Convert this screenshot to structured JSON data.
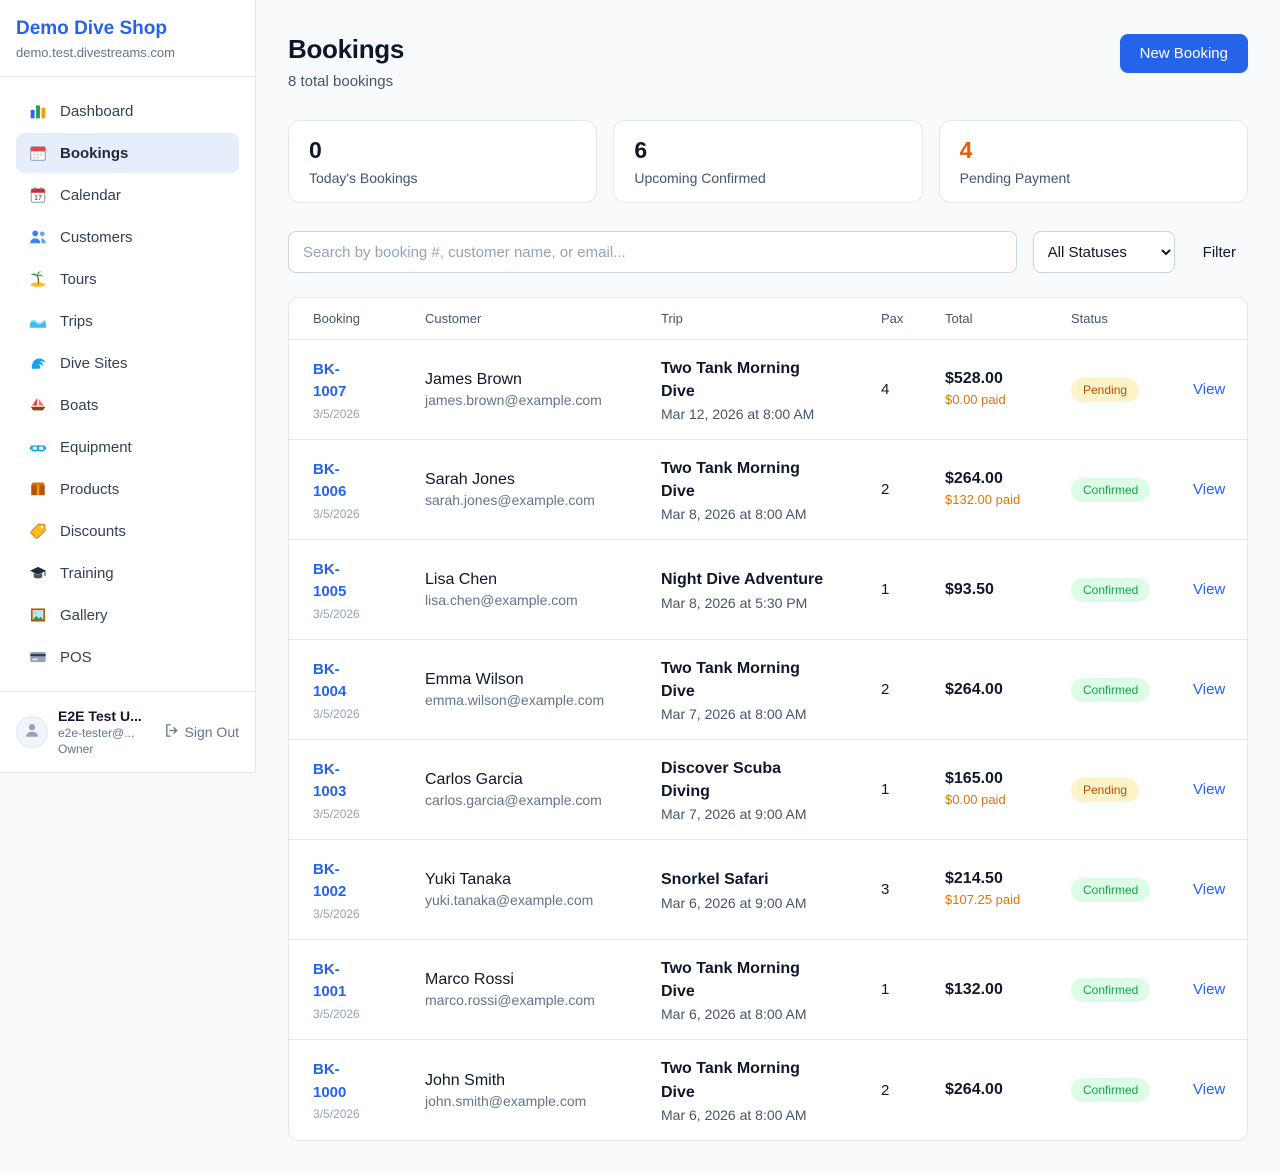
{
  "colors": {
    "accent": "#2563eb",
    "pending_stat": "#ea580c",
    "paid_text": "#d97706",
    "status": {
      "Pending": {
        "bg": "#fef3c7",
        "text": "#b45309"
      },
      "Confirmed": {
        "bg": "#dcfce7",
        "text": "#16a34a"
      }
    }
  },
  "sidebar": {
    "brand": "Demo Dive Shop",
    "subdomain": "demo.test.divestreams.com",
    "items": [
      {
        "icon": "bar-chart-icon",
        "label": "Dashboard",
        "active": false
      },
      {
        "icon": "bookings-calendar-icon",
        "label": "Bookings",
        "active": true
      },
      {
        "icon": "calendar-icon",
        "label": "Calendar",
        "active": false
      },
      {
        "icon": "users-icon",
        "label": "Customers",
        "active": false
      },
      {
        "icon": "island-icon",
        "label": "Tours",
        "active": false
      },
      {
        "icon": "wave-icon",
        "label": "Trips",
        "active": false
      },
      {
        "icon": "dive-site-icon",
        "label": "Dive Sites",
        "active": false
      },
      {
        "icon": "boat-icon",
        "label": "Boats",
        "active": false
      },
      {
        "icon": "dive-mask-icon",
        "label": "Equipment",
        "active": false
      },
      {
        "icon": "box-icon",
        "label": "Products",
        "active": false
      },
      {
        "icon": "tag-icon",
        "label": "Discounts",
        "active": false
      },
      {
        "icon": "grad-cap-icon",
        "label": "Training",
        "active": false
      },
      {
        "icon": "picture-icon",
        "label": "Gallery",
        "active": false
      },
      {
        "icon": "credit-card-icon",
        "label": "POS",
        "active": false
      }
    ],
    "user": {
      "name": "E2E Test U...",
      "email": "e2e-tester@...",
      "role": "Owner",
      "sign_out_label": "Sign Out"
    }
  },
  "header": {
    "title": "Bookings",
    "subtitle": "8 total bookings",
    "new_booking_label": "New Booking"
  },
  "stats": [
    {
      "value": "0",
      "label": "Today's Bookings",
      "value_color": "#0f172a"
    },
    {
      "value": "6",
      "label": "Upcoming Confirmed",
      "value_color": "#0f172a"
    },
    {
      "value": "4",
      "label": "Pending Payment",
      "value_color": "#ea580c"
    }
  ],
  "filters": {
    "search_placeholder": "Search by booking #, customer name, or email...",
    "status_selected": "All Statuses",
    "filter_label": "Filter"
  },
  "table": {
    "columns": [
      "Booking",
      "Customer",
      "Trip",
      "Pax",
      "Total",
      "Status"
    ],
    "view_label": "View",
    "rows": [
      {
        "id": "BK-1007",
        "date": "3/5/2026",
        "customer": "James Brown",
        "email": "james.brown@example.com",
        "trip": "Two Tank Morning Dive",
        "trip_date": "Mar 12, 2026 at 8:00 AM",
        "pax": "4",
        "total": "$528.00",
        "paid": "$0.00 paid",
        "status": "Pending"
      },
      {
        "id": "BK-1006",
        "date": "3/5/2026",
        "customer": "Sarah Jones",
        "email": "sarah.jones@example.com",
        "trip": "Two Tank Morning Dive",
        "trip_date": "Mar 8, 2026 at 8:00 AM",
        "pax": "2",
        "total": "$264.00",
        "paid": "$132.00 paid",
        "status": "Confirmed"
      },
      {
        "id": "BK-1005",
        "date": "3/5/2026",
        "customer": "Lisa Chen",
        "email": "lisa.chen@example.com",
        "trip": "Night Dive Adventure",
        "trip_date": "Mar 8, 2026 at 5:30 PM",
        "pax": "1",
        "total": "$93.50",
        "paid": null,
        "status": "Confirmed"
      },
      {
        "id": "BK-1004",
        "date": "3/5/2026",
        "customer": "Emma Wilson",
        "email": "emma.wilson@example.com",
        "trip": "Two Tank Morning Dive",
        "trip_date": "Mar 7, 2026 at 8:00 AM",
        "pax": "2",
        "total": "$264.00",
        "paid": null,
        "status": "Confirmed"
      },
      {
        "id": "BK-1003",
        "date": "3/5/2026",
        "customer": "Carlos Garcia",
        "email": "carlos.garcia@example.com",
        "trip": "Discover Scuba Diving",
        "trip_date": "Mar 7, 2026 at 9:00 AM",
        "pax": "1",
        "total": "$165.00",
        "paid": "$0.00 paid",
        "status": "Pending"
      },
      {
        "id": "BK-1002",
        "date": "3/5/2026",
        "customer": "Yuki Tanaka",
        "email": "yuki.tanaka@example.com",
        "trip": "Snorkel Safari",
        "trip_date": "Mar 6, 2026 at 9:00 AM",
        "pax": "3",
        "total": "$214.50",
        "paid": "$107.25 paid",
        "status": "Confirmed"
      },
      {
        "id": "BK-1001",
        "date": "3/5/2026",
        "customer": "Marco Rossi",
        "email": "marco.rossi@example.com",
        "trip": "Two Tank Morning Dive",
        "trip_date": "Mar 6, 2026 at 8:00 AM",
        "pax": "1",
        "total": "$132.00",
        "paid": null,
        "status": "Confirmed"
      },
      {
        "id": "BK-1000",
        "date": "3/5/2026",
        "customer": "John Smith",
        "email": "john.smith@example.com",
        "trip": "Two Tank Morning Dive",
        "trip_date": "Mar 6, 2026 at 8:00 AM",
        "pax": "2",
        "total": "$264.00",
        "paid": null,
        "status": "Confirmed"
      }
    ]
  }
}
